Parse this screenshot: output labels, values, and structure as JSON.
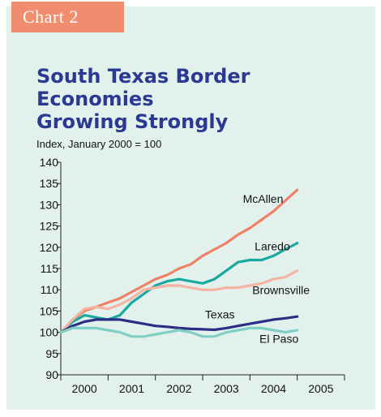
{
  "badge": "Chart 2",
  "chart_data": {
    "type": "line",
    "title": [
      "South Texas Border Economies",
      "Growing Strongly"
    ],
    "ylabel": "Index, January 2000 = 100",
    "ylim": [
      90,
      140
    ],
    "yticks": [
      90,
      95,
      100,
      105,
      110,
      115,
      120,
      125,
      130,
      135,
      140
    ],
    "xlim": [
      2000.0,
      2006.0
    ],
    "xticks": [
      "2000",
      "2001",
      "2002",
      "2003",
      "2004",
      "2005"
    ],
    "grid": false,
    "series": [
      {
        "name": "McAllen",
        "color": "#ef8266",
        "points": [
          [
            2000.0,
            100
          ],
          [
            2000.25,
            103
          ],
          [
            2000.5,
            105
          ],
          [
            2000.75,
            106
          ],
          [
            2001.0,
            107
          ],
          [
            2001.25,
            108
          ],
          [
            2001.5,
            109.5
          ],
          [
            2001.75,
            111
          ],
          [
            2002.0,
            112.5
          ],
          [
            2002.25,
            113.5
          ],
          [
            2002.5,
            115
          ],
          [
            2002.75,
            116
          ],
          [
            2003.0,
            118
          ],
          [
            2003.25,
            119.5
          ],
          [
            2003.5,
            121
          ],
          [
            2003.75,
            123
          ],
          [
            2004.0,
            124.5
          ],
          [
            2004.25,
            126.5
          ],
          [
            2004.5,
            128.5
          ],
          [
            2004.75,
            131
          ],
          [
            2005.0,
            133.5
          ]
        ]
      },
      {
        "name": "Laredo",
        "color": "#1aa9a0",
        "points": [
          [
            2000.0,
            100
          ],
          [
            2000.25,
            102.5
          ],
          [
            2000.5,
            104
          ],
          [
            2000.75,
            103.5
          ],
          [
            2001.0,
            103
          ],
          [
            2001.25,
            104
          ],
          [
            2001.5,
            107
          ],
          [
            2001.75,
            109
          ],
          [
            2002.0,
            111
          ],
          [
            2002.25,
            112
          ],
          [
            2002.5,
            112.5
          ],
          [
            2002.75,
            112
          ],
          [
            2003.0,
            111.5
          ],
          [
            2003.25,
            112.5
          ],
          [
            2003.5,
            114.5
          ],
          [
            2003.75,
            116.5
          ],
          [
            2004.0,
            117
          ],
          [
            2004.25,
            117
          ],
          [
            2004.5,
            118
          ],
          [
            2004.75,
            119.5
          ],
          [
            2005.0,
            121
          ]
        ]
      },
      {
        "name": "Brownsville",
        "color": "#f5b4a1",
        "points": [
          [
            2000.0,
            100
          ],
          [
            2000.25,
            103
          ],
          [
            2000.5,
            105.5
          ],
          [
            2000.75,
            106
          ],
          [
            2001.0,
            105.5
          ],
          [
            2001.25,
            106.5
          ],
          [
            2001.5,
            108
          ],
          [
            2001.75,
            110
          ],
          [
            2002.0,
            110.5
          ],
          [
            2002.25,
            111
          ],
          [
            2002.5,
            111
          ],
          [
            2002.75,
            110.5
          ],
          [
            2003.0,
            110
          ],
          [
            2003.25,
            110
          ],
          [
            2003.5,
            110.5
          ],
          [
            2003.75,
            110.5
          ],
          [
            2004.0,
            111
          ],
          [
            2004.25,
            111.5
          ],
          [
            2004.5,
            112.5
          ],
          [
            2004.75,
            113
          ],
          [
            2005.0,
            114.5
          ]
        ]
      },
      {
        "name": "Texas",
        "color": "#2a2f85",
        "points": [
          [
            2000.0,
            100
          ],
          [
            2000.25,
            101.5
          ],
          [
            2000.5,
            102.5
          ],
          [
            2000.75,
            103
          ],
          [
            2001.0,
            103
          ],
          [
            2001.25,
            103
          ],
          [
            2001.5,
            102.5
          ],
          [
            2001.75,
            102
          ],
          [
            2002.0,
            101.5
          ],
          [
            2002.25,
            101.3
          ],
          [
            2002.5,
            101
          ],
          [
            2002.75,
            100.8
          ],
          [
            2003.0,
            100.7
          ],
          [
            2003.25,
            100.6
          ],
          [
            2003.5,
            101
          ],
          [
            2003.75,
            101.5
          ],
          [
            2004.0,
            102
          ],
          [
            2004.25,
            102.5
          ],
          [
            2004.5,
            103
          ],
          [
            2004.75,
            103.3
          ],
          [
            2005.0,
            103.7
          ]
        ]
      },
      {
        "name": "El Paso",
        "color": "#7fcfc6",
        "points": [
          [
            2000.0,
            100
          ],
          [
            2000.25,
            101
          ],
          [
            2000.5,
            101
          ],
          [
            2000.75,
            101
          ],
          [
            2001.0,
            100.5
          ],
          [
            2001.25,
            100
          ],
          [
            2001.5,
            99
          ],
          [
            2001.75,
            99
          ],
          [
            2002.0,
            99.5
          ],
          [
            2002.25,
            100
          ],
          [
            2002.5,
            100.5
          ],
          [
            2002.75,
            100
          ],
          [
            2003.0,
            99
          ],
          [
            2003.25,
            99
          ],
          [
            2003.5,
            100
          ],
          [
            2003.75,
            100.5
          ],
          [
            2004.0,
            101
          ],
          [
            2004.25,
            101
          ],
          [
            2004.5,
            100.5
          ],
          [
            2004.75,
            100
          ],
          [
            2005.0,
            100.5
          ]
        ]
      }
    ],
    "series_labels": [
      {
        "name": "McAllen",
        "x": 2003.85,
        "y": 130.5
      },
      {
        "name": "Laredo",
        "x": 2004.1,
        "y": 119.3
      },
      {
        "name": "Brownsville",
        "x": 2004.05,
        "y": 109
      },
      {
        "name": "Texas",
        "x": 2003.05,
        "y": 103.3
      },
      {
        "name": "El Paso",
        "x": 2004.2,
        "y": 97.5
      }
    ]
  }
}
